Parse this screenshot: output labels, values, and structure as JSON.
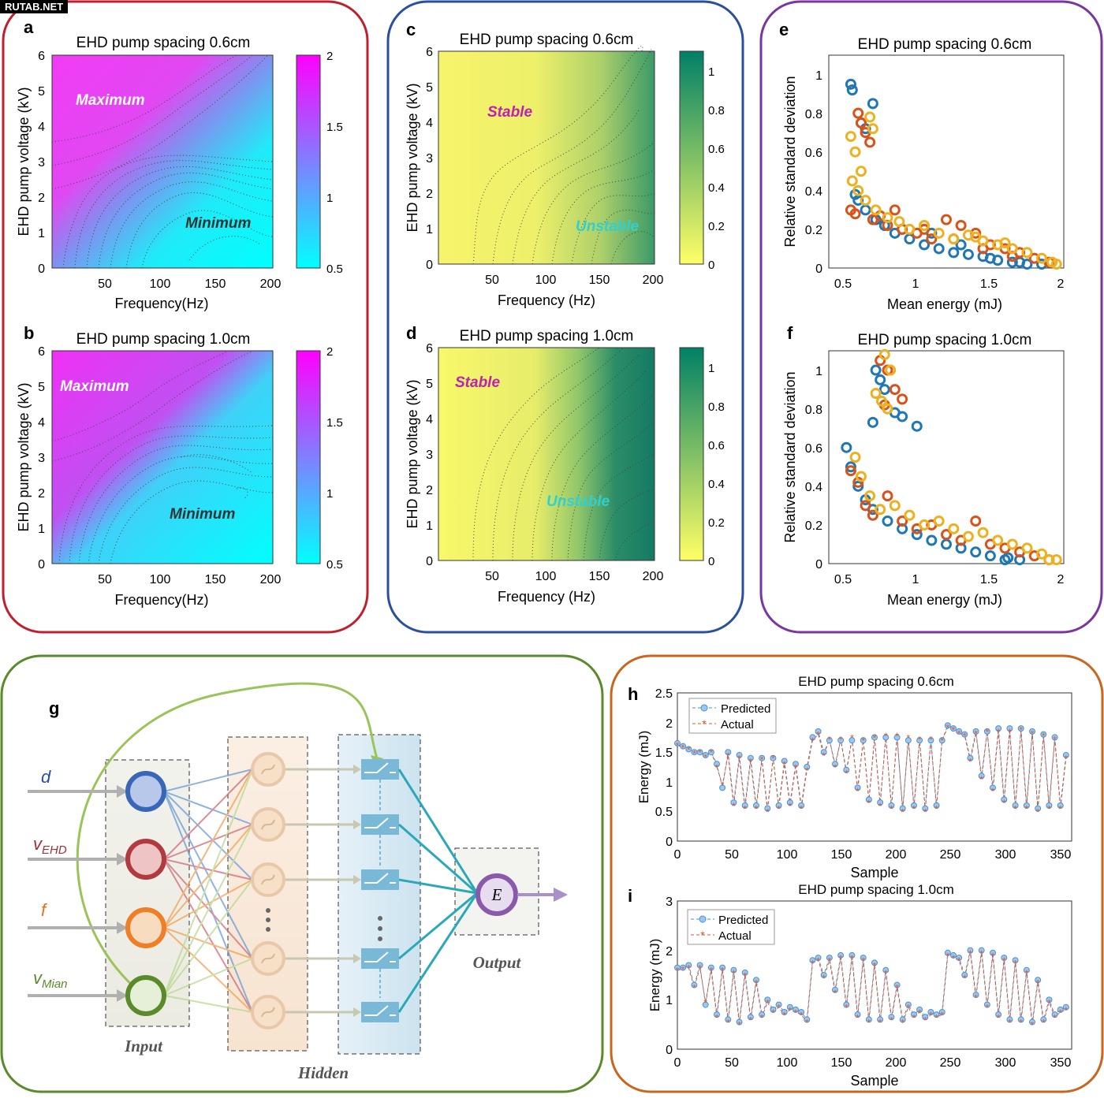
{
  "watermark": "RUTAB.NET",
  "colors": {
    "red": "#c0202e",
    "blue": "#2a4f9e",
    "purple": "#7a35a0",
    "green": "#5a8a2a",
    "orange": "#c8661e",
    "series_blue": "#1f77b4",
    "series_red": "#d95319",
    "series_yellow": "#edb120",
    "predicted": "#4a90d9",
    "actual": "#e2572a"
  },
  "panels": {
    "a": {
      "letter": "a",
      "title": "EHD pump spacing 0.6cm",
      "xlabel": "Frequency(Hz)",
      "ylabel": "EHD pump voltage (kV)",
      "label_max": "Maximum",
      "label_min": "Minimum",
      "xticks": [
        "50",
        "100",
        "150",
        "200"
      ],
      "yticks": [
        "0",
        "1",
        "2",
        "3",
        "4",
        "5",
        "6"
      ],
      "cticks": [
        "0.5",
        "1",
        "1.5",
        "2"
      ]
    },
    "b": {
      "letter": "b",
      "title": "EHD pump spacing 1.0cm",
      "xlabel": "Frequency(Hz)",
      "ylabel": "EHD pump voltage (kV)",
      "label_max": "Maximum",
      "label_min": "Minimum",
      "xticks": [
        "50",
        "100",
        "150",
        "200"
      ],
      "yticks": [
        "0",
        "1",
        "2",
        "3",
        "4",
        "5",
        "6"
      ],
      "cticks": [
        "0.5",
        "1",
        "1.5",
        "2"
      ]
    },
    "c": {
      "letter": "c",
      "title": "EHD pump spacing 0.6cm",
      "xlabel": "Frequency (Hz)",
      "ylabel": "EHD pump voltage (kV)",
      "label_stable": "Stable",
      "label_unstable": "Unstable",
      "xticks": [
        "50",
        "100",
        "150",
        "200"
      ],
      "yticks": [
        "0",
        "1",
        "2",
        "3",
        "4",
        "5",
        "6"
      ],
      "cticks": [
        "0",
        "0.2",
        "0.4",
        "0.6",
        "0.8",
        "1"
      ]
    },
    "d": {
      "letter": "d",
      "title": "EHD pump spacing 1.0cm",
      "xlabel": "Frequency (Hz)",
      "ylabel": "EHD pump voltage (kV)",
      "label_stable": "Stable",
      "label_unstable": "Unstable",
      "xticks": [
        "50",
        "100",
        "150",
        "200"
      ],
      "yticks": [
        "0",
        "1",
        "2",
        "3",
        "4",
        "5",
        "6"
      ],
      "cticks": [
        "0",
        "0.2",
        "0.4",
        "0.6",
        "0.8",
        "1"
      ]
    },
    "e": {
      "letter": "e",
      "title": "EHD pump spacing 0.6cm",
      "xlabel": "Mean energy (mJ)",
      "ylabel": "Relative standard deviation",
      "xticks": [
        "0.5",
        "1",
        "1.5",
        "2"
      ],
      "yticks": [
        "0",
        "0.2",
        "0.4",
        "0.6",
        "0.8",
        "1"
      ]
    },
    "f": {
      "letter": "f",
      "title": "EHD pump spacing 1.0cm",
      "xlabel": "Mean energy (mJ)",
      "ylabel": "Relative standard deviation",
      "xticks": [
        "0.5",
        "1",
        "1.5",
        "2"
      ],
      "yticks": [
        "0",
        "0.2",
        "0.4",
        "0.6",
        "0.8",
        "1"
      ]
    },
    "g": {
      "letter": "g",
      "inputs": [
        "d",
        "v",
        "f",
        "v"
      ],
      "input_subs": [
        "",
        "EHD",
        "",
        "Mian"
      ],
      "label_input": "Input",
      "label_hidden": "Hidden",
      "label_output": "Output",
      "output_node": "E"
    },
    "h": {
      "letter": "h",
      "title": "EHD pump spacing 0.6cm",
      "xlabel": "Sample",
      "ylabel": "Energy (mJ)",
      "legend": [
        "Predicted",
        "Actual"
      ],
      "xticks": [
        "0",
        "50",
        "100",
        "150",
        "200",
        "250",
        "300",
        "350"
      ],
      "yticks": [
        "0",
        "0.5",
        "1",
        "1.5",
        "2",
        "2.5"
      ]
    },
    "i": {
      "letter": "i",
      "title": "EHD pump spacing 1.0cm",
      "xlabel": "Sample",
      "ylabel": "Energy (mJ)",
      "legend": [
        "Predicted",
        "Actual"
      ],
      "xticks": [
        "0",
        "50",
        "100",
        "150",
        "200",
        "250",
        "300",
        "350"
      ],
      "yticks": [
        "0",
        "1",
        "2",
        "3"
      ]
    }
  },
  "chart_data": [
    {
      "id": "a",
      "type": "heatmap",
      "title": "EHD pump spacing 0.6cm",
      "xlabel": "Frequency(Hz)",
      "ylabel": "EHD pump voltage (kV)",
      "xlim": [
        0,
        200
      ],
      "ylim": [
        0,
        6
      ],
      "clim": [
        0.5,
        2
      ],
      "colormap": "cool"
    },
    {
      "id": "b",
      "type": "heatmap",
      "title": "EHD pump spacing 1.0cm",
      "xlabel": "Frequency(Hz)",
      "ylabel": "EHD pump voltage (kV)",
      "xlim": [
        0,
        200
      ],
      "ylim": [
        0,
        6
      ],
      "clim": [
        0.5,
        2
      ],
      "colormap": "cool"
    },
    {
      "id": "c",
      "type": "heatmap",
      "title": "EHD pump spacing 0.6cm",
      "xlabel": "Frequency (Hz)",
      "ylabel": "EHD pump voltage (kV)",
      "xlim": [
        0,
        200
      ],
      "ylim": [
        0,
        6
      ],
      "clim": [
        0,
        1.1
      ],
      "colormap": "summer"
    },
    {
      "id": "d",
      "type": "heatmap",
      "title": "EHD pump spacing 1.0cm",
      "xlabel": "Frequency (Hz)",
      "ylabel": "EHD pump voltage (kV)",
      "xlim": [
        0,
        200
      ],
      "ylim": [
        0,
        6
      ],
      "clim": [
        0,
        1.1
      ],
      "colormap": "summer"
    },
    {
      "id": "e",
      "type": "scatter",
      "title": "EHD pump spacing 0.6cm",
      "xlabel": "Mean energy (mJ)",
      "ylabel": "Relative standard deviation",
      "xlim": [
        0.4,
        2
      ],
      "ylim": [
        0,
        1.1
      ],
      "series": [
        {
          "color": "#1f77b4",
          "x": [
            0.55,
            0.56,
            0.62,
            0.65,
            0.7,
            0.58,
            0.6,
            0.65,
            0.72,
            0.78,
            0.85,
            0.95,
            1.05,
            1.15,
            1.25,
            1.35,
            1.45,
            1.55,
            1.65,
            1.75,
            1.85,
            0.9,
            1.1,
            1.3,
            1.5,
            1.7
          ],
          "y": [
            0.95,
            0.92,
            0.75,
            0.72,
            0.85,
            0.38,
            0.35,
            0.3,
            0.25,
            0.22,
            0.18,
            0.15,
            0.12,
            0.1,
            0.08,
            0.07,
            0.06,
            0.04,
            0.03,
            0.02,
            0.02,
            0.2,
            0.18,
            0.12,
            0.05,
            0.03
          ]
        },
        {
          "color": "#d95319",
          "x": [
            0.6,
            0.62,
            0.65,
            0.68,
            0.55,
            0.58,
            0.7,
            0.75,
            0.8,
            0.9,
            1.0,
            1.1,
            1.2,
            1.3,
            1.4,
            1.5,
            1.6,
            1.7,
            1.8,
            1.9,
            0.85,
            1.05,
            1.25,
            1.45,
            1.65
          ],
          "y": [
            0.8,
            0.75,
            0.7,
            0.65,
            0.3,
            0.28,
            0.25,
            0.27,
            0.22,
            0.2,
            0.18,
            0.15,
            0.25,
            0.22,
            0.18,
            0.12,
            0.1,
            0.08,
            0.05,
            0.03,
            0.3,
            0.2,
            0.15,
            0.1,
            0.06
          ],
          "name": ""
        },
        {
          "color": "#edb120",
          "x": [
            0.55,
            0.58,
            0.62,
            0.68,
            0.7,
            0.56,
            0.6,
            0.65,
            0.72,
            0.8,
            0.88,
            0.95,
            1.05,
            1.15,
            1.25,
            1.35,
            1.45,
            1.55,
            1.65,
            1.75,
            1.85,
            1.92,
            1.95,
            1.4,
            1.6
          ],
          "y": [
            0.68,
            0.6,
            0.5,
            0.78,
            0.72,
            0.45,
            0.4,
            0.35,
            0.3,
            0.26,
            0.24,
            0.2,
            0.22,
            0.18,
            0.15,
            0.17,
            0.14,
            0.12,
            0.1,
            0.08,
            0.05,
            0.03,
            0.02,
            0.16,
            0.13
          ]
        }
      ]
    },
    {
      "id": "f",
      "type": "scatter",
      "title": "EHD pump spacing 1.0cm",
      "xlabel": "Mean energy (mJ)",
      "ylabel": "Relative standard deviation",
      "xlim": [
        0.4,
        2
      ],
      "ylim": [
        0,
        1.1
      ],
      "series": [
        {
          "color": "#1f77b4",
          "x": [
            0.72,
            0.75,
            0.78,
            0.85,
            0.9,
            1.0,
            0.7,
            0.52,
            0.55,
            0.6,
            0.65,
            0.7,
            0.8,
            0.9,
            1.0,
            1.1,
            1.2,
            1.3,
            1.4,
            1.5,
            1.6,
            1.7,
            1.62
          ],
          "y": [
            1.0,
            0.95,
            0.9,
            0.78,
            0.76,
            0.71,
            0.73,
            0.6,
            0.5,
            0.4,
            0.33,
            0.28,
            0.22,
            0.18,
            0.15,
            0.12,
            0.1,
            0.08,
            0.06,
            0.04,
            0.02,
            0.02,
            0.03
          ]
        },
        {
          "color": "#d95319",
          "x": [
            0.75,
            0.8,
            0.85,
            0.9,
            0.78,
            0.55,
            0.6,
            0.65,
            0.7,
            0.8,
            0.9,
            1.0,
            1.1,
            1.2,
            1.3,
            1.4,
            1.5,
            1.6,
            1.7,
            1.8,
            1.9
          ],
          "y": [
            1.05,
            1.0,
            0.9,
            0.85,
            0.82,
            0.48,
            0.42,
            0.3,
            0.25,
            0.35,
            0.22,
            0.18,
            0.2,
            0.15,
            0.12,
            0.22,
            0.1,
            0.08,
            0.06,
            0.04,
            0.02
          ]
        },
        {
          "color": "#edb120",
          "x": [
            0.78,
            0.82,
            0.72,
            0.76,
            0.8,
            0.58,
            0.62,
            0.68,
            0.75,
            0.85,
            0.95,
            1.05,
            1.15,
            1.25,
            1.35,
            1.45,
            1.55,
            1.65,
            1.75,
            1.85,
            1.95,
            1.9
          ],
          "y": [
            1.08,
            1.0,
            0.88,
            0.84,
            0.8,
            0.55,
            0.45,
            0.35,
            0.28,
            0.3,
            0.25,
            0.2,
            0.22,
            0.18,
            0.14,
            0.16,
            0.12,
            0.1,
            0.08,
            0.05,
            0.02,
            0.02
          ]
        }
      ]
    },
    {
      "id": "h",
      "type": "line",
      "title": "EHD pump spacing 0.6cm",
      "xlabel": "Sample",
      "ylabel": "Energy (mJ)",
      "xlim": [
        0,
        350
      ],
      "ylim": [
        0,
        2.5
      ],
      "series_names": [
        "Predicted",
        "Actual"
      ],
      "x": [
        0,
        5,
        10,
        15,
        20,
        25,
        30,
        35,
        40,
        45,
        50,
        55,
        60,
        65,
        70,
        75,
        80,
        85,
        90,
        95,
        100,
        105,
        110,
        115,
        120,
        125,
        130,
        135,
        140,
        145,
        150,
        155,
        160,
        165,
        170,
        175,
        180,
        185,
        190,
        195,
        200,
        205,
        210,
        215,
        220,
        225,
        230,
        235,
        240,
        245,
        250,
        255,
        260,
        265,
        270,
        275,
        280,
        285,
        290,
        295,
        300,
        305,
        310,
        315,
        320,
        325,
        330,
        335,
        340,
        345
      ],
      "series": [
        {
          "name": "Predicted",
          "values": [
            1.65,
            1.6,
            1.55,
            1.5,
            1.5,
            1.45,
            1.5,
            1.3,
            0.9,
            1.5,
            0.65,
            1.45,
            0.6,
            1.4,
            0.6,
            1.4,
            0.55,
            1.4,
            0.6,
            1.35,
            0.65,
            1.3,
            0.6,
            1.25,
            1.75,
            1.85,
            1.5,
            1.7,
            1.3,
            1.7,
            1.2,
            1.7,
            0.9,
            1.7,
            0.7,
            1.75,
            0.65,
            1.75,
            0.6,
            1.75,
            0.55,
            1.7,
            0.6,
            1.7,
            0.55,
            1.7,
            0.6,
            1.7,
            1.95,
            1.9,
            1.85,
            1.8,
            1.4,
            1.85,
            1.1,
            1.85,
            0.9,
            1.9,
            0.7,
            1.9,
            0.6,
            1.9,
            0.6,
            1.85,
            0.55,
            1.8,
            0.6,
            1.75,
            0.6,
            1.45
          ]
        },
        {
          "name": "Actual",
          "values": [
            1.62,
            1.58,
            1.55,
            1.48,
            1.5,
            1.42,
            1.5,
            1.25,
            0.95,
            1.45,
            0.6,
            1.4,
            0.55,
            1.35,
            0.55,
            1.38,
            0.5,
            1.4,
            0.55,
            1.3,
            0.6,
            1.25,
            0.55,
            1.2,
            1.7,
            1.8,
            1.45,
            1.72,
            1.25,
            1.72,
            1.15,
            1.75,
            0.85,
            1.7,
            0.65,
            1.75,
            0.6,
            1.78,
            0.55,
            1.78,
            0.5,
            1.75,
            0.55,
            1.72,
            0.5,
            1.72,
            0.55,
            1.7,
            1.92,
            1.88,
            1.82,
            1.78,
            1.35,
            1.82,
            1.05,
            1.85,
            0.85,
            1.85,
            0.65,
            1.85,
            0.55,
            1.88,
            0.55,
            1.82,
            0.5,
            1.78,
            0.55,
            1.72,
            0.55,
            1.4
          ]
        }
      ]
    },
    {
      "id": "i",
      "type": "line",
      "title": "EHD pump spacing 1.0cm",
      "xlabel": "Sample",
      "ylabel": "Energy (mJ)",
      "xlim": [
        0,
        350
      ],
      "ylim": [
        0,
        3
      ],
      "series_names": [
        "Predicted",
        "Actual"
      ],
      "x": [
        0,
        5,
        10,
        15,
        20,
        25,
        30,
        35,
        40,
        45,
        50,
        55,
        60,
        65,
        70,
        75,
        80,
        85,
        90,
        95,
        100,
        105,
        110,
        115,
        120,
        125,
        130,
        135,
        140,
        145,
        150,
        155,
        160,
        165,
        170,
        175,
        180,
        185,
        190,
        195,
        200,
        205,
        210,
        215,
        220,
        225,
        230,
        235,
        240,
        245,
        250,
        255,
        260,
        265,
        270,
        275,
        280,
        285,
        290,
        295,
        300,
        305,
        310,
        315,
        320,
        325,
        330,
        335,
        340,
        345
      ],
      "series": [
        {
          "name": "Predicted",
          "values": [
            1.65,
            1.65,
            1.7,
            1.3,
            1.7,
            0.9,
            1.65,
            0.7,
            1.65,
            0.6,
            1.6,
            0.55,
            1.55,
            0.65,
            1.4,
            0.7,
            1.0,
            0.8,
            0.9,
            0.75,
            0.85,
            0.8,
            0.75,
            0.6,
            1.8,
            1.85,
            1.5,
            1.85,
            1.2,
            1.9,
            0.9,
            1.9,
            0.7,
            1.85,
            0.6,
            1.75,
            0.6,
            1.6,
            0.65,
            1.3,
            0.6,
            0.9,
            0.7,
            0.8,
            0.65,
            0.75,
            0.7,
            0.75,
            1.95,
            1.9,
            1.85,
            1.5,
            2.0,
            1.1,
            2.0,
            0.9,
            1.95,
            0.7,
            1.85,
            0.6,
            1.8,
            0.6,
            1.6,
            0.55,
            1.4,
            0.6,
            1.0,
            0.7,
            0.8,
            0.85
          ]
        },
        {
          "name": "Actual",
          "values": [
            1.6,
            1.62,
            1.65,
            1.25,
            1.65,
            0.95,
            1.6,
            0.65,
            1.6,
            0.55,
            1.55,
            0.5,
            1.5,
            0.6,
            1.35,
            0.65,
            0.95,
            0.75,
            0.85,
            0.7,
            0.8,
            0.75,
            0.7,
            0.55,
            1.75,
            1.8,
            1.45,
            1.8,
            1.15,
            1.85,
            0.85,
            1.85,
            0.65,
            1.8,
            0.55,
            1.7,
            0.55,
            1.55,
            0.6,
            1.25,
            0.55,
            0.85,
            0.65,
            0.75,
            0.6,
            0.7,
            0.65,
            0.7,
            1.9,
            1.85,
            1.8,
            1.45,
            1.95,
            1.05,
            1.95,
            0.85,
            1.9,
            0.65,
            1.8,
            0.55,
            1.75,
            0.55,
            1.55,
            0.5,
            1.35,
            0.55,
            0.95,
            0.65,
            0.75,
            0.8
          ]
        }
      ]
    }
  ]
}
